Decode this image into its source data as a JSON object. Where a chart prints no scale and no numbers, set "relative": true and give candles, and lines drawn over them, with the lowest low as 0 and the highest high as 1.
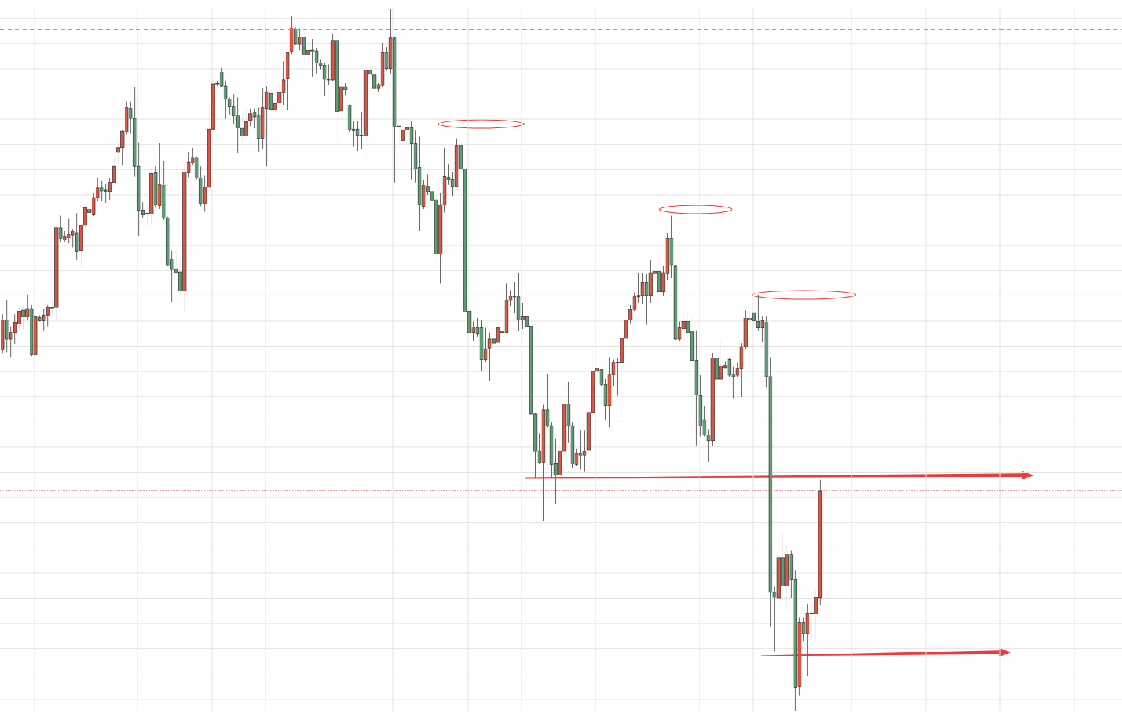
{
  "chart_data": {
    "type": "candlestick",
    "relative": true,
    "grid": true,
    "tick_labels": false,
    "categories": [
      null,
      null,
      null,
      null,
      null,
      null,
      null,
      null,
      null,
      null,
      null,
      null,
      null,
      null,
      null,
      null,
      null,
      null,
      null,
      null,
      null,
      null,
      null,
      null,
      null,
      null,
      null,
      null,
      null,
      null,
      null,
      null,
      null,
      null,
      null,
      null,
      null,
      null,
      null,
      null,
      null,
      null,
      null,
      null,
      null,
      null,
      null,
      null,
      null,
      null,
      null,
      null,
      null,
      null,
      null,
      null,
      null,
      null,
      null,
      null,
      null,
      null,
      null,
      null,
      null,
      null,
      null,
      null,
      null,
      null,
      null,
      null,
      null,
      null,
      null,
      null,
      null,
      null,
      null,
      null,
      null,
      null,
      null,
      null,
      null,
      null,
      null,
      null,
      null,
      null,
      null,
      null,
      null,
      null,
      null,
      null,
      null,
      null,
      null,
      null,
      null,
      null,
      null,
      null,
      null,
      null,
      null,
      null,
      null,
      null,
      null,
      null,
      null,
      null,
      null,
      null,
      null,
      null,
      null,
      null,
      null,
      null,
      null,
      null,
      null,
      null,
      null,
      null,
      null,
      null,
      null,
      null,
      null,
      null,
      null,
      null,
      null,
      null,
      null,
      null,
      null,
      null,
      null,
      null,
      null,
      null,
      null,
      null,
      null,
      null,
      null,
      null,
      null,
      null,
      null,
      null,
      null,
      null,
      null,
      null,
      null,
      null,
      null,
      null,
      null,
      null,
      null,
      null,
      null,
      null,
      null,
      null,
      null,
      null,
      null,
      null,
      null,
      null,
      null,
      null,
      null,
      null,
      null,
      null,
      null,
      null,
      null,
      null,
      null,
      null,
      null,
      null,
      null,
      null,
      null,
      null,
      null,
      null,
      null
    ],
    "ohlc": [
      [
        0.515,
        0.565,
        0.509,
        0.557
      ],
      [
        0.557,
        0.586,
        0.511,
        0.53
      ],
      [
        0.53,
        0.548,
        0.504,
        0.539
      ],
      [
        0.539,
        0.565,
        0.522,
        0.553
      ],
      [
        0.551,
        0.574,
        0.545,
        0.569
      ],
      [
        0.571,
        0.575,
        0.543,
        0.562
      ],
      [
        0.562,
        0.593,
        0.557,
        0.573
      ],
      [
        0.573,
        0.578,
        0.505,
        0.508
      ],
      [
        0.508,
        0.563,
        0.507,
        0.562
      ],
      [
        0.561,
        0.564,
        0.555,
        0.556
      ],
      [
        0.556,
        0.573,
        0.542,
        0.564
      ],
      [
        0.564,
        0.578,
        0.548,
        0.575
      ],
      [
        0.575,
        0.584,
        0.562,
        0.574
      ],
      [
        0.575,
        0.692,
        0.558,
        0.688
      ],
      [
        0.688,
        0.706,
        0.668,
        0.673
      ],
      [
        0.671,
        0.683,
        0.668,
        0.676
      ],
      [
        0.674,
        0.701,
        0.666,
        0.679
      ],
      [
        0.678,
        0.686,
        0.66,
        0.683
      ],
      [
        0.681,
        0.709,
        0.643,
        0.654
      ],
      [
        0.656,
        0.694,
        0.634,
        0.692
      ],
      [
        0.692,
        0.72,
        0.685,
        0.717
      ],
      [
        0.715,
        0.717,
        0.709,
        0.71
      ],
      [
        0.707,
        0.738,
        0.705,
        0.731
      ],
      [
        0.731,
        0.759,
        0.726,
        0.745
      ],
      [
        0.745,
        0.755,
        0.726,
        0.741
      ],
      [
        0.742,
        0.751,
        0.724,
        0.74
      ],
      [
        0.74,
        0.759,
        0.728,
        0.753
      ],
      [
        0.753,
        0.789,
        0.749,
        0.776
      ],
      [
        0.796,
        0.809,
        0.781,
        0.802
      ],
      [
        0.802,
        0.828,
        0.777,
        0.826
      ],
      [
        0.825,
        0.868,
        0.821,
        0.859
      ],
      [
        0.858,
        0.868,
        0.823,
        0.844
      ],
      [
        0.844,
        0.889,
        0.761,
        0.776
      ],
      [
        0.776,
        0.81,
        0.677,
        0.713
      ],
      [
        0.713,
        0.725,
        0.702,
        0.707
      ],
      [
        0.708,
        0.722,
        0.692,
        0.709
      ],
      [
        0.708,
        0.772,
        0.692,
        0.766
      ],
      [
        0.767,
        0.776,
        0.717,
        0.721
      ],
      [
        0.72,
        0.809,
        0.715,
        0.75
      ],
      [
        0.749,
        0.784,
        0.699,
        0.702
      ],
      [
        0.702,
        0.704,
        0.634,
        0.635
      ],
      [
        0.643,
        0.656,
        0.582,
        0.629
      ],
      [
        0.629,
        0.657,
        0.622,
        0.624
      ],
      [
        0.625,
        0.641,
        0.593,
        0.598
      ],
      [
        0.598,
        0.779,
        0.567,
        0.768
      ],
      [
        0.767,
        0.797,
        0.76,
        0.782
      ],
      [
        0.781,
        0.802,
        0.777,
        0.788
      ],
      [
        0.788,
        0.789,
        0.757,
        0.759
      ],
      [
        0.759,
        0.776,
        0.719,
        0.723
      ],
      [
        0.723,
        0.763,
        0.711,
        0.746
      ],
      [
        0.746,
        0.863,
        0.743,
        0.829
      ],
      [
        0.829,
        0.899,
        0.824,
        0.893
      ],
      [
        0.893,
        0.897,
        0.89,
        0.894
      ],
      [
        0.91,
        0.916,
        0.889,
        0.89
      ],
      [
        0.89,
        0.898,
        0.843,
        0.872
      ],
      [
        0.872,
        0.874,
        0.849,
        0.861
      ],
      [
        0.861,
        0.878,
        0.836,
        0.848
      ],
      [
        0.848,
        0.874,
        0.795,
        0.831
      ],
      [
        0.83,
        0.849,
        0.808,
        0.819
      ],
      [
        0.819,
        0.86,
        0.817,
        0.84
      ],
      [
        0.841,
        0.858,
        0.833,
        0.851
      ],
      [
        0.853,
        0.858,
        0.83,
        0.846
      ],
      [
        0.848,
        0.859,
        0.797,
        0.815
      ],
      [
        0.815,
        0.887,
        0.801,
        0.859
      ],
      [
        0.858,
        0.89,
        0.776,
        0.882
      ],
      [
        0.88,
        0.884,
        0.853,
        0.857
      ],
      [
        0.856,
        0.882,
        0.853,
        0.865
      ],
      [
        0.866,
        0.891,
        0.865,
        0.881
      ],
      [
        0.881,
        0.925,
        0.863,
        0.899
      ],
      [
        0.901,
        0.939,
        0.856,
        0.938
      ],
      [
        0.94,
        0.99,
        0.936,
        0.973
      ],
      [
        0.971,
        0.974,
        0.948,
        0.95
      ],
      [
        0.95,
        0.972,
        0.941,
        0.96
      ],
      [
        0.96,
        0.965,
        0.921,
        0.935
      ],
      [
        0.935,
        0.951,
        0.925,
        0.941
      ],
      [
        0.942,
        0.957,
        0.903,
        0.94
      ],
      [
        0.94,
        0.944,
        0.908,
        0.923
      ],
      [
        0.923,
        0.928,
        0.914,
        0.919
      ],
      [
        0.919,
        0.923,
        0.876,
        0.9
      ],
      [
        0.9,
        0.921,
        0.892,
        0.899
      ],
      [
        0.899,
        0.965,
        0.897,
        0.955
      ],
      [
        0.955,
        0.971,
        0.812,
        0.854
      ],
      [
        0.855,
        0.91,
        0.844,
        0.889
      ],
      [
        0.889,
        0.895,
        0.877,
        0.885
      ],
      [
        0.863,
        0.864,
        0.825,
        0.828
      ],
      [
        0.827,
        0.84,
        0.804,
        0.829
      ],
      [
        0.829,
        0.84,
        0.798,
        0.82
      ],
      [
        0.819,
        0.853,
        0.8,
        0.82
      ],
      [
        0.819,
        0.92,
        0.779,
        0.913
      ],
      [
        0.913,
        0.95,
        0.866,
        0.907
      ],
      [
        0.906,
        0.912,
        0.885,
        0.887
      ],
      [
        0.887,
        0.895,
        0.882,
        0.892
      ],
      [
        0.891,
        0.952,
        0.889,
        0.938
      ],
      [
        0.938,
        0.946,
        0.912,
        0.915
      ],
      [
        0.915,
        1,
        0.908,
        0.959
      ],
      [
        0.959,
        0.961,
        0.753,
        0.832
      ],
      [
        0.832,
        0.843,
        0.798,
        0.833
      ],
      [
        0.813,
        0.851,
        0.812,
        0.828
      ],
      [
        0.828,
        0.848,
        0.817,
        0.831
      ],
      [
        0.831,
        0.84,
        0.757,
        0.808
      ],
      [
        0.808,
        0.827,
        0.753,
        0.772
      ],
      [
        0.774,
        0.818,
        0.684,
        0.721
      ],
      [
        0.719,
        0.756,
        0.715,
        0.749
      ],
      [
        0.747,
        0.764,
        0.735,
        0.74
      ],
      [
        0.74,
        0.753,
        0.721,
        0.727
      ],
      [
        0.728,
        0.735,
        0.635,
        0.651
      ],
      [
        0.651,
        0.738,
        0.609,
        0.721
      ],
      [
        0.721,
        0.802,
        0.71,
        0.761
      ],
      [
        0.76,
        0.779,
        0.75,
        0.757
      ],
      [
        0.757,
        0.768,
        0.733,
        0.747
      ],
      [
        0.747,
        0.815,
        0.746,
        0.805
      ],
      [
        0.805,
        0.831,
        0.761,
        0.772
      ],
      [
        0.772,
        0.773,
        0.562,
        0.569
      ],
      [
        0.569,
        0.577,
        0.467,
        0.539
      ],
      [
        0.539,
        0.555,
        0.527,
        0.547
      ],
      [
        0.546,
        0.56,
        0.533,
        0.537
      ],
      [
        0.546,
        0.557,
        0.484,
        0.501
      ],
      [
        0.501,
        0.546,
        0.497,
        0.516
      ],
      [
        0.517,
        0.539,
        0.47,
        0.53
      ],
      [
        0.53,
        0.545,
        0.482,
        0.524
      ],
      [
        0.525,
        0.55,
        0.521,
        0.546
      ],
      [
        0.539,
        0.548,
        0.533,
        0.54
      ],
      [
        0.539,
        0.609,
        0.538,
        0.585
      ],
      [
        0.585,
        0.599,
        0.577,
        0.591
      ],
      [
        0.591,
        0.611,
        0.567,
        0.59
      ],
      [
        0.59,
        0.624,
        0.541,
        0.557
      ],
      [
        0.557,
        0.581,
        0.544,
        0.562
      ],
      [
        0.562,
        0.578,
        0.544,
        0.548
      ],
      [
        0.548,
        0.552,
        0.397,
        0.423
      ],
      [
        0.423,
        0.425,
        0.332,
        0.37
      ],
      [
        0.37,
        0.395,
        0.352,
        0.354
      ],
      [
        0.354,
        0.436,
        0.27,
        0.429
      ],
      [
        0.429,
        0.48,
        0.404,
        0.406
      ],
      [
        0.406,
        0.411,
        0.332,
        0.351
      ],
      [
        0.353,
        0.388,
        0.295,
        0.336
      ],
      [
        0.336,
        0.398,
        0.334,
        0.37
      ],
      [
        0.37,
        0.444,
        0.359,
        0.437
      ],
      [
        0.437,
        0.469,
        0.382,
        0.406
      ],
      [
        0.406,
        0.411,
        0.346,
        0.352
      ],
      [
        0.351,
        0.373,
        0.349,
        0.367
      ],
      [
        0.367,
        0.4,
        0.344,
        0.364
      ],
      [
        0.364,
        0.4,
        0.341,
        0.37
      ],
      [
        0.372,
        0.436,
        0.359,
        0.425
      ],
      [
        0.425,
        0.522,
        0.387,
        0.484
      ],
      [
        0.484,
        0.491,
        0.439,
        0.488
      ],
      [
        0.486,
        0.487,
        0.462,
        0.465
      ],
      [
        0.465,
        0.473,
        0.414,
        0.435
      ],
      [
        0.435,
        0.504,
        0.404,
        0.479
      ],
      [
        0.479,
        0.501,
        0.462,
        0.497
      ],
      [
        0.496,
        0.503,
        0.449,
        0.497
      ],
      [
        0.496,
        0.552,
        0.42,
        0.531
      ],
      [
        0.531,
        0.584,
        0.516,
        0.557
      ],
      [
        0.557,
        0.578,
        0.552,
        0.572
      ],
      [
        0.572,
        0.596,
        0.569,
        0.59
      ],
      [
        0.59,
        0.624,
        0.581,
        0.592
      ],
      [
        0.592,
        0.624,
        0.579,
        0.61
      ],
      [
        0.61,
        0.622,
        0.55,
        0.592
      ],
      [
        0.592,
        0.642,
        0.581,
        0.624
      ],
      [
        0.623,
        0.641,
        0.618,
        0.626
      ],
      [
        0.626,
        0.649,
        0.588,
        0.597
      ],
      [
        0.597,
        0.634,
        0.591,
        0.624
      ],
      [
        0.623,
        0.681,
        0.614,
        0.673
      ],
      [
        0.673,
        0.706,
        0.617,
        0.635
      ],
      [
        0.634,
        0.635,
        0.529,
        0.53
      ],
      [
        0.53,
        0.555,
        0.527,
        0.546
      ],
      [
        0.545,
        0.571,
        0.542,
        0.555
      ],
      [
        0.555,
        0.565,
        0.524,
        0.539
      ],
      [
        0.541,
        0.563,
        0.498,
        0.499
      ],
      [
        0.499,
        0.542,
        0.378,
        0.45
      ],
      [
        0.449,
        0.478,
        0.391,
        0.406
      ],
      [
        0.415,
        0.434,
        0.391,
        0.393
      ],
      [
        0.393,
        0.401,
        0.355,
        0.385
      ],
      [
        0.385,
        0.51,
        0.377,
        0.503
      ],
      [
        0.503,
        0.509,
        0.44,
        0.473
      ],
      [
        0.473,
        0.527,
        0.471,
        0.491
      ],
      [
        0.489,
        0.498,
        0.488,
        0.492
      ],
      [
        0.501,
        0.503,
        0.475,
        0.478
      ],
      [
        0.479,
        0.49,
        0.445,
        0.476
      ],
      [
        0.478,
        0.496,
        0.475,
        0.488
      ],
      [
        0.488,
        0.524,
        0.447,
        0.519
      ],
      [
        0.519,
        0.571,
        0.516,
        0.56
      ],
      [
        0.56,
        0.571,
        0.548,
        0.557
      ],
      [
        0.567,
        0.568,
        0.555,
        0.556
      ],
      [
        0.555,
        0.593,
        0.541,
        0.546
      ],
      [
        0.546,
        0.562,
        0.526,
        0.556
      ],
      [
        0.554,
        0.562,
        0.461,
        0.476
      ],
      [
        0.476,
        0.504,
        0.12,
        0.169
      ],
      [
        0.169,
        0.177,
        0.085,
        0.162
      ],
      [
        0.161,
        0.22,
        0.159,
        0.218
      ],
      [
        0.218,
        0.254,
        0.159,
        0.178
      ],
      [
        0.178,
        0.236,
        0.144,
        0.223
      ],
      [
        0.223,
        0.228,
        0.161,
        0.187
      ],
      [
        0.187,
        0.2,
        0,
        0.033
      ],
      [
        0.035,
        0.133,
        0.022,
        0.126
      ],
      [
        0.126,
        0.133,
        0.099,
        0.11
      ],
      [
        0.11,
        0.152,
        0.049,
        0.139
      ],
      [
        0.138,
        0.152,
        0.099,
        0.139
      ],
      [
        0.138,
        0.172,
        0.103,
        0.162
      ],
      [
        0.161,
        0.329,
        0.151,
        0.313
      ]
    ],
    "ref_lines": [
      {
        "axis": "y",
        "value": 0.971,
        "color": "#9e9e9e",
        "line_style": "dashed"
      },
      {
        "axis": "y",
        "value": 0.314,
        "color": "#e53935",
        "line_style": "dotted"
      }
    ]
  }
}
